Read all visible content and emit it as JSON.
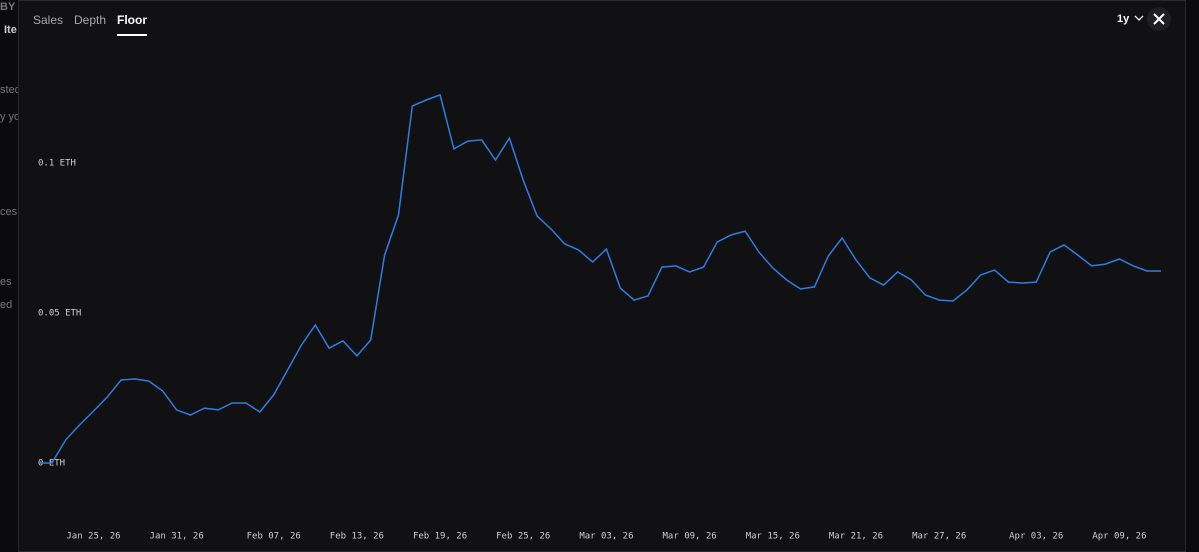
{
  "tabs": [
    "Sales",
    "Depth",
    "Floor"
  ],
  "active_tab": 2,
  "range_selector": "1y",
  "background_fragments": [
    "BY",
    "Ite",
    "stec",
    "y yo",
    "ces",
    "es",
    "ed"
  ],
  "chart_data": {
    "type": "line",
    "x": [
      "2026-01-21",
      "2026-01-22",
      "2026-01-23",
      "2026-01-24",
      "2026-01-25",
      "2026-01-26",
      "2026-01-27",
      "2026-01-28",
      "2026-01-29",
      "2026-01-30",
      "2026-01-31",
      "2026-02-01",
      "2026-02-02",
      "2026-02-03",
      "2026-02-04",
      "2026-02-05",
      "2026-02-06",
      "2026-02-07",
      "2026-02-08",
      "2026-02-09",
      "2026-02-10",
      "2026-02-11",
      "2026-02-12",
      "2026-02-13",
      "2026-02-14",
      "2026-02-15",
      "2026-02-16",
      "2026-02-17",
      "2026-02-18",
      "2026-02-19",
      "2026-02-20",
      "2026-02-21",
      "2026-02-22",
      "2026-02-23",
      "2026-02-24",
      "2026-02-25",
      "2026-02-26",
      "2026-02-27",
      "2026-02-28",
      "2026-03-01",
      "2026-03-02",
      "2026-03-03",
      "2026-03-04",
      "2026-03-05",
      "2026-03-06",
      "2026-03-07",
      "2026-03-08",
      "2026-03-09",
      "2026-03-10",
      "2026-03-11",
      "2026-03-12",
      "2026-03-13",
      "2026-03-14",
      "2026-03-15",
      "2026-03-16",
      "2026-03-17",
      "2026-03-18",
      "2026-03-19",
      "2026-03-20",
      "2026-03-21",
      "2026-03-22",
      "2026-03-23",
      "2026-03-24",
      "2026-03-25",
      "2026-03-26",
      "2026-03-27",
      "2026-03-28",
      "2026-03-29",
      "2026-03-30",
      "2026-03-31",
      "2026-04-01",
      "2026-04-02",
      "2026-04-03",
      "2026-04-04",
      "2026-04-05",
      "2026-04-06",
      "2026-04-07",
      "2026-04-08",
      "2026-04-09",
      "2026-04-10",
      "2026-04-11",
      "2026-04-12"
    ],
    "series": [
      {
        "color": "#2f7de1",
        "values": [
          0,
          0,
          0.0077,
          0.0127,
          0.0173,
          0.022,
          0.0277,
          0.028,
          0.0273,
          0.024,
          0.0177,
          0.016,
          0.0183,
          0.0177,
          0.02,
          0.02,
          0.017,
          0.0227,
          0.031,
          0.0393,
          0.046,
          0.0383,
          0.0407,
          0.0357,
          0.041,
          0.0693,
          0.0827,
          0.119,
          0.121,
          0.1227,
          0.1047,
          0.1073,
          0.1077,
          0.101,
          0.1083,
          0.0943,
          0.0823,
          0.078,
          0.073,
          0.071,
          0.067,
          0.0713,
          0.0583,
          0.0543,
          0.0557,
          0.0653,
          0.0657,
          0.0637,
          0.0653,
          0.0737,
          0.076,
          0.0773,
          0.0703,
          0.065,
          0.061,
          0.058,
          0.0587,
          0.069,
          0.075,
          0.0677,
          0.0617,
          0.0593,
          0.0637,
          0.061,
          0.056,
          0.0543,
          0.054,
          0.0577,
          0.0627,
          0.0643,
          0.0603,
          0.06,
          0.0603,
          0.0703,
          0.0727,
          0.0693,
          0.0657,
          0.0663,
          0.068,
          0.0657,
          0.064,
          0.064
        ]
      }
    ],
    "xlim": [
      "2026-01-21",
      "2026-04-12"
    ],
    "xticks": [
      {
        "value": "2026-01-25",
        "label": "Jan 25, 26"
      },
      {
        "value": "2026-01-31",
        "label": "Jan 31, 26"
      },
      {
        "value": "2026-02-07",
        "label": "Feb 07, 26"
      },
      {
        "value": "2026-02-13",
        "label": "Feb 13, 26"
      },
      {
        "value": "2026-02-19",
        "label": "Feb 19, 26"
      },
      {
        "value": "2026-02-25",
        "label": "Feb 25, 26"
      },
      {
        "value": "2026-03-03",
        "label": "Mar 03, 26"
      },
      {
        "value": "2026-03-09",
        "label": "Mar 09, 26"
      },
      {
        "value": "2026-03-15",
        "label": "Mar 15, 26"
      },
      {
        "value": "2026-03-21",
        "label": "Mar 21, 26"
      },
      {
        "value": "2026-03-27",
        "label": "Mar 27, 26"
      },
      {
        "value": "2026-04-03",
        "label": "Apr 03, 26"
      },
      {
        "value": "2026-04-09",
        "label": "Apr 09, 26"
      }
    ],
    "ylim": [
      -0.02,
      0.14
    ],
    "yticks": [
      {
        "value": 0,
        "label": "0 ETH"
      },
      {
        "value": 0.05,
        "label": "0.05 ETH"
      },
      {
        "value": 0.1,
        "label": "0.1 ETH"
      }
    ]
  }
}
